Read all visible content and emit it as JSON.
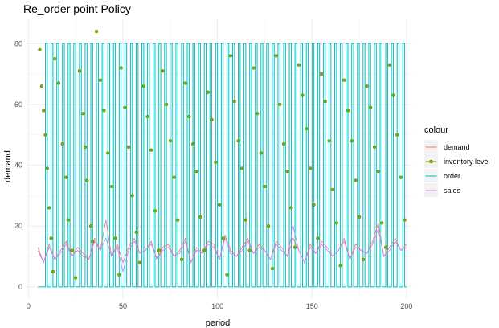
{
  "chart_data": {
    "type": "line",
    "title": "Re_order point Policy",
    "xlabel": "period",
    "ylabel": "demand",
    "xlim": [
      -1,
      203
    ],
    "ylim": [
      -4,
      88
    ],
    "xticks": [
      0,
      50,
      100,
      150,
      200
    ],
    "yticks": [
      0,
      20,
      40,
      60,
      80
    ],
    "x_tick_labels": [
      "0",
      "50",
      "100",
      "150",
      "200"
    ],
    "y_tick_labels": [
      "0",
      "20",
      "40",
      "60",
      "80"
    ],
    "grid": true,
    "legend_position": "right",
    "legend_title": "colour",
    "colors": {
      "demand": "#f8766d",
      "inventory level": "#7cae00",
      "order": "#00bfc4",
      "sales": "#c77cff"
    },
    "series": [
      {
        "name": "demand",
        "kind": "line",
        "x": [
          5,
          8,
          11,
          14,
          17,
          20,
          23,
          26,
          29,
          32,
          35,
          38,
          41,
          44,
          47,
          50,
          53,
          56,
          59,
          62,
          65,
          68,
          71,
          74,
          77,
          80,
          83,
          86,
          89,
          92,
          95,
          98,
          101,
          104,
          107,
          110,
          113,
          116,
          119,
          122,
          125,
          128,
          131,
          134,
          137,
          140,
          143,
          146,
          149,
          152,
          155,
          158,
          161,
          164,
          167,
          170,
          173,
          176,
          179,
          182,
          185,
          188,
          191,
          194,
          197,
          200
        ],
        "y": [
          13,
          8,
          14,
          9,
          12,
          15,
          10,
          13,
          11,
          9,
          16,
          12,
          22,
          10,
          14,
          8,
          13,
          16,
          11,
          12,
          15,
          9,
          13,
          14,
          10,
          12,
          16,
          8,
          13,
          11,
          15,
          14,
          9,
          17,
          12,
          10,
          13,
          16,
          11,
          14,
          12,
          9,
          15,
          13,
          10,
          16,
          12,
          8,
          14,
          11,
          15,
          13,
          10,
          12,
          16,
          9,
          14,
          12,
          11,
          15,
          21,
          10,
          13,
          16,
          12,
          14
        ]
      },
      {
        "name": "sales",
        "kind": "line",
        "x": [
          5,
          8,
          11,
          14,
          17,
          20,
          23,
          26,
          29,
          32,
          35,
          38,
          41,
          44,
          47,
          50,
          53,
          56,
          59,
          62,
          65,
          68,
          71,
          74,
          77,
          80,
          83,
          86,
          89,
          92,
          95,
          98,
          101,
          104,
          107,
          110,
          113,
          116,
          119,
          122,
          125,
          128,
          131,
          134,
          137,
          140,
          143,
          146,
          149,
          152,
          155,
          158,
          161,
          164,
          167,
          170,
          173,
          176,
          179,
          182,
          185,
          188,
          191,
          194,
          197,
          200
        ],
        "y": [
          12,
          8,
          13,
          9,
          11,
          14,
          10,
          12,
          10,
          9,
          15,
          12,
          16,
          10,
          13,
          5,
          12,
          15,
          11,
          12,
          14,
          9,
          12,
          13,
          10,
          11,
          15,
          8,
          12,
          11,
          14,
          13,
          9,
          16,
          11,
          10,
          12,
          15,
          11,
          13,
          12,
          9,
          14,
          12,
          10,
          20,
          12,
          8,
          13,
          11,
          14,
          12,
          10,
          12,
          15,
          9,
          13,
          12,
          11,
          14,
          19,
          10,
          12,
          15,
          12,
          13
        ]
      },
      {
        "name": "order",
        "kind": "step",
        "x": [
          5,
          9,
          10,
          12,
          13,
          15,
          16,
          18,
          19,
          21,
          22,
          24,
          25,
          27,
          28,
          30,
          31,
          33,
          34,
          36,
          37,
          39,
          40,
          42,
          43,
          45,
          46,
          48,
          49,
          51,
          52,
          54,
          55,
          57,
          58,
          60,
          61,
          63,
          64,
          66,
          67,
          69,
          70,
          72,
          73,
          75,
          76,
          78,
          79,
          81,
          82,
          84,
          85,
          87,
          88,
          90,
          91,
          93,
          94,
          96,
          97,
          99,
          100,
          102,
          103,
          105,
          106,
          108,
          109,
          111,
          112,
          114,
          115,
          117,
          118,
          120,
          121,
          123,
          124,
          126,
          127,
          129,
          130,
          132,
          133,
          135,
          136,
          138,
          139,
          141,
          142,
          144,
          145,
          147,
          148,
          150,
          151,
          153,
          154,
          156,
          157,
          159,
          160,
          162,
          163,
          165,
          166,
          168,
          169,
          171,
          172,
          174,
          175,
          177,
          178,
          180,
          181,
          183,
          184,
          186,
          187,
          189,
          190,
          192,
          193,
          195,
          196,
          198,
          199,
          200
        ],
        "y": [
          0,
          80,
          0,
          80,
          0,
          80,
          0,
          80,
          0,
          80,
          0,
          80,
          0,
          80,
          0,
          80,
          0,
          80,
          0,
          80,
          0,
          80,
          0,
          80,
          0,
          80,
          0,
          80,
          0,
          80,
          0,
          80,
          0,
          80,
          0,
          80,
          0,
          80,
          0,
          80,
          0,
          80,
          0,
          80,
          0,
          80,
          0,
          80,
          0,
          80,
          0,
          80,
          0,
          80,
          0,
          80,
          0,
          80,
          0,
          80,
          0,
          80,
          0,
          80,
          0,
          80,
          0,
          80,
          0,
          80,
          0,
          80,
          0,
          80,
          0,
          80,
          0,
          80,
          0,
          80,
          0,
          80,
          0,
          80,
          0,
          80,
          0,
          80,
          0,
          80,
          0,
          80,
          0,
          80,
          0,
          80,
          0,
          80,
          0,
          80,
          0,
          80,
          0,
          80,
          0,
          80,
          0,
          80,
          0,
          80,
          0,
          80,
          0,
          80,
          0,
          80,
          0,
          80,
          0,
          80,
          0,
          80,
          0,
          80,
          0,
          80,
          0,
          80,
          0,
          0
        ]
      },
      {
        "name": "inventory level",
        "kind": "points",
        "x": [
          6,
          7,
          8,
          9,
          10,
          11,
          12,
          13,
          14,
          16,
          18,
          20,
          21,
          23,
          25,
          27,
          29,
          30,
          31,
          33,
          34,
          36,
          38,
          40,
          42,
          44,
          46,
          48,
          49,
          51,
          53,
          55,
          57,
          59,
          61,
          63,
          65,
          67,
          69,
          71,
          73,
          75,
          77,
          79,
          81,
          83,
          85,
          87,
          89,
          91,
          93,
          95,
          97,
          99,
          101,
          103,
          105,
          107,
          109,
          111,
          113,
          115,
          117,
          119,
          121,
          123,
          125,
          127,
          129,
          131,
          133,
          135,
          137,
          139,
          141,
          143,
          145,
          147,
          149,
          151,
          153,
          155,
          157,
          159,
          161,
          163,
          165,
          167,
          169,
          171,
          173,
          175,
          177,
          179,
          181,
          183,
          185,
          187,
          189,
          191,
          193,
          195,
          197,
          199
        ],
        "y": [
          78,
          66,
          58,
          50,
          39,
          26,
          16,
          5,
          75,
          67,
          47,
          36,
          22,
          12,
          3,
          71,
          57,
          46,
          35,
          20,
          15,
          84,
          68,
          58,
          44,
          33,
          16,
          4,
          72,
          59,
          46,
          30,
          18,
          8,
          66,
          56,
          45,
          25,
          12,
          71,
          60,
          48,
          36,
          22,
          9,
          67,
          56,
          47,
          38,
          23,
          12,
          64,
          55,
          41,
          27,
          16,
          4,
          76,
          61,
          48,
          39,
          22,
          12,
          72,
          57,
          44,
          33,
          20,
          6,
          76,
          60,
          47,
          38,
          26,
          13,
          73,
          63,
          52,
          39,
          27,
          16,
          70,
          61,
          48,
          32,
          21,
          7,
          68,
          58,
          48,
          35,
          23,
          9,
          66,
          59,
          46,
          38,
          21,
          13,
          73,
          63,
          50,
          36,
          22
        ]
      }
    ]
  }
}
